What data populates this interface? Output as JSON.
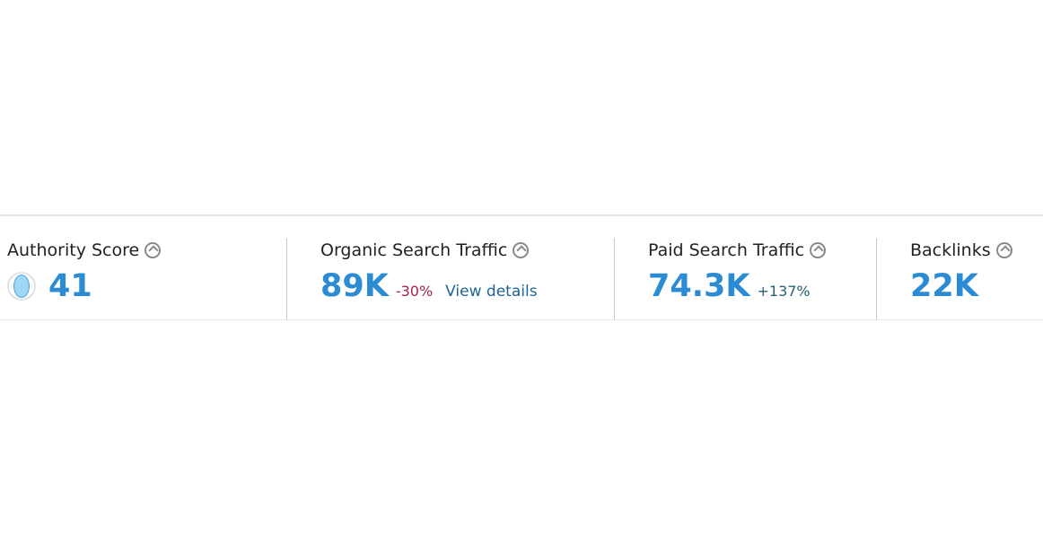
{
  "metrics": [
    {
      "label": "Authority Score",
      "value": "41"
    },
    {
      "label": "Organic Search Traffic",
      "value": "89K",
      "change": "-30%",
      "link": "View details"
    },
    {
      "label": "Paid Search Traffic",
      "value": "74.3K",
      "change": "+137%"
    },
    {
      "label": "Backlinks",
      "value": "22K"
    }
  ]
}
